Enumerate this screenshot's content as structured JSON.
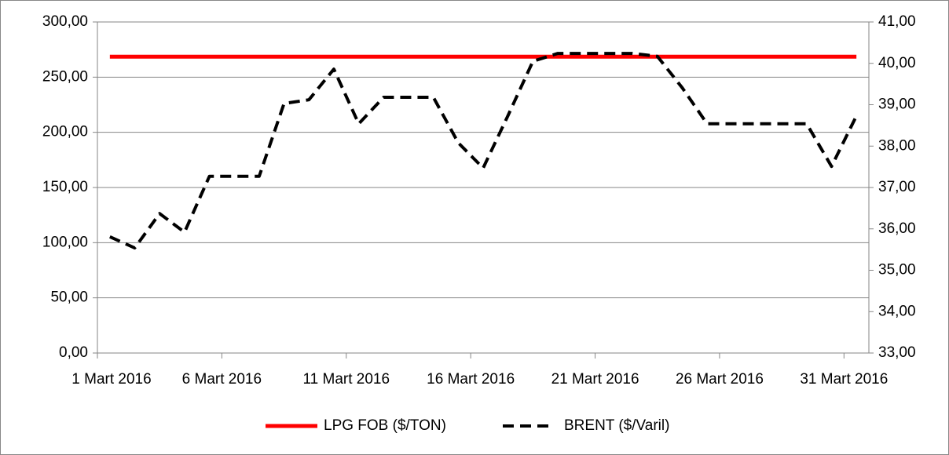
{
  "chart_data": {
    "type": "line",
    "x": [
      1,
      2,
      3,
      4,
      5,
      6,
      7,
      8,
      9,
      10,
      11,
      12,
      13,
      14,
      15,
      16,
      17,
      18,
      19,
      20,
      21,
      22,
      23,
      24,
      25,
      26,
      27,
      28,
      29,
      30,
      31
    ],
    "xlim": [
      1,
      32
    ],
    "xticks": [
      {
        "value": 1,
        "label": "1 Mart 2016"
      },
      {
        "value": 6,
        "label": "6 Mart 2016"
      },
      {
        "value": 11,
        "label": "11 Mart 2016"
      },
      {
        "value": 16,
        "label": "16 Mart 2016"
      },
      {
        "value": 21,
        "label": "21 Mart 2016"
      },
      {
        "value": 26,
        "label": "26 Mart 2016"
      },
      {
        "value": 31,
        "label": "31 Mart 2016"
      }
    ],
    "ylim": [
      0,
      300
    ],
    "yticks": [
      {
        "value": 0,
        "label": "0,00"
      },
      {
        "value": 50,
        "label": "50,00"
      },
      {
        "value": 100,
        "label": "100,00"
      },
      {
        "value": 150,
        "label": "150,00"
      },
      {
        "value": 200,
        "label": "200,00"
      },
      {
        "value": 250,
        "label": "250,00"
      },
      {
        "value": 300,
        "label": "300,00"
      }
    ],
    "y2lim": [
      33,
      41
    ],
    "y2ticks": [
      {
        "value": 33,
        "label": "33,00"
      },
      {
        "value": 34,
        "label": "34,00"
      },
      {
        "value": 35,
        "label": "35,00"
      },
      {
        "value": 36,
        "label": "36,00"
      },
      {
        "value": 37,
        "label": "37,00"
      },
      {
        "value": 38,
        "label": "38,00"
      },
      {
        "value": 39,
        "label": "39,00"
      },
      {
        "value": 40,
        "label": "40,00"
      },
      {
        "value": 41,
        "label": "41,00"
      }
    ],
    "grid": true,
    "legend": "bottom",
    "series": [
      {
        "name": "LPG FOB ($/TON)",
        "color": "#ff0000",
        "dash": false,
        "values": [
          268.5,
          268.5,
          268.5,
          268.5,
          268.5,
          268.5,
          268.5,
          268.5,
          268.5,
          268.5,
          268.5,
          268.5,
          268.5,
          268.5,
          268.5,
          268.5,
          268.5,
          268.5,
          268.5,
          268.5,
          268.5,
          268.5,
          268.5,
          268.5,
          268.5,
          268.5,
          268.5,
          268.5,
          268.5,
          268.5,
          268.5
        ]
      },
      {
        "name": "BRENT ($/Varil)",
        "color": "#000000",
        "dash": true,
        "axis": "y2",
        "values": [
          35.81,
          35.54,
          36.37,
          35.92,
          37.27,
          37.27,
          37.27,
          39.03,
          39.12,
          39.86,
          38.54,
          39.18,
          39.18,
          39.18,
          38.08,
          37.47,
          38.74,
          40.05,
          40.24,
          40.24,
          40.24,
          40.24,
          40.17,
          39.41,
          38.54,
          38.54,
          38.54,
          38.54,
          38.54,
          37.51,
          38.73
        ]
      }
    ]
  }
}
